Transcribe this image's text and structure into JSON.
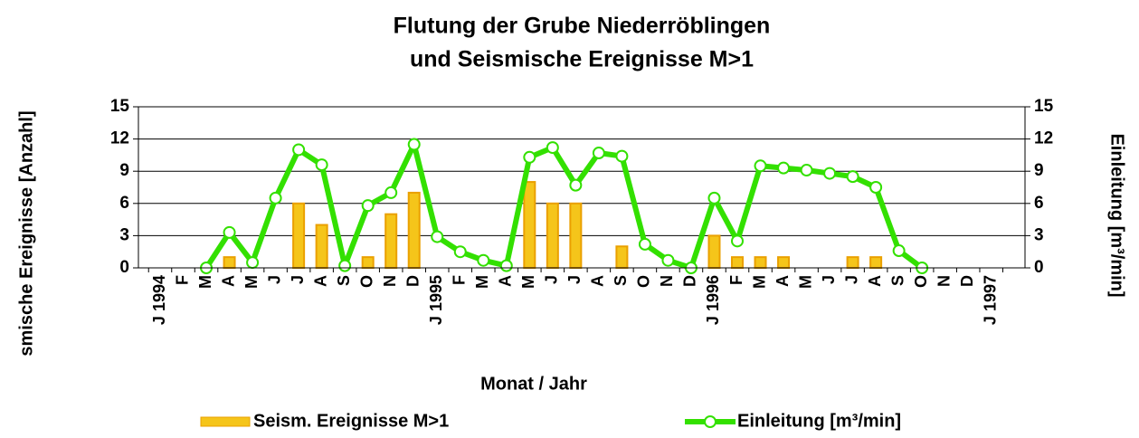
{
  "chart_data": {
    "type": "bar-line",
    "title": "Flutung der Grube Niederröblingen",
    "subtitle": "und Seismische Ereignisse M>1",
    "x_label": "Monat / Jahr",
    "y_label": "smische Ereignisse [Anzahl]",
    "y2_label": "Einleitung [m³/min]",
    "categories": [
      "J 1994",
      "F",
      "M",
      "A",
      "M",
      "J",
      "J",
      "A",
      "S",
      "O",
      "N",
      "D",
      "J 1995",
      "F",
      "M",
      "A",
      "M",
      "J",
      "J",
      "A",
      "S",
      "O",
      "N",
      "D",
      "J 1996",
      "F",
      "M",
      "A",
      "M",
      "J",
      "J",
      "A",
      "S",
      "O",
      "N",
      "D",
      "J 1997",
      null
    ],
    "series": [
      {
        "name": "Seism. Ereignisse M>1",
        "type": "bar",
        "color": "#f5c51a",
        "edge": "#eaa000",
        "axis": "y",
        "values": [
          null,
          null,
          null,
          1,
          null,
          null,
          6,
          4,
          null,
          1,
          5,
          7,
          null,
          null,
          null,
          null,
          8,
          6,
          6,
          null,
          2,
          null,
          null,
          null,
          3,
          1,
          1,
          1,
          null,
          null,
          1,
          1,
          null,
          null,
          null,
          null,
          null,
          null
        ]
      },
      {
        "name": "Einleitung [m³/min]",
        "type": "line",
        "color": "#33e000",
        "axis": "y2",
        "values": [
          null,
          null,
          0,
          3.3,
          0.5,
          6.5,
          11,
          9.6,
          0.2,
          5.8,
          7,
          11.5,
          2.9,
          1.5,
          0.7,
          0.2,
          10.3,
          11.2,
          7.7,
          10.7,
          10.4,
          2.2,
          0.7,
          0,
          6.5,
          2.5,
          9.5,
          9.3,
          9.1,
          8.8,
          8.5,
          7.5,
          1.6,
          0,
          null,
          null,
          null,
          null
        ]
      }
    ],
    "ylim": [
      0,
      15
    ],
    "yticks": [
      0,
      3,
      6,
      9,
      12,
      15
    ],
    "y2lim": [
      0,
      15
    ],
    "y2ticks": [
      0,
      3,
      6,
      9,
      12,
      15
    ],
    "grid": true
  }
}
